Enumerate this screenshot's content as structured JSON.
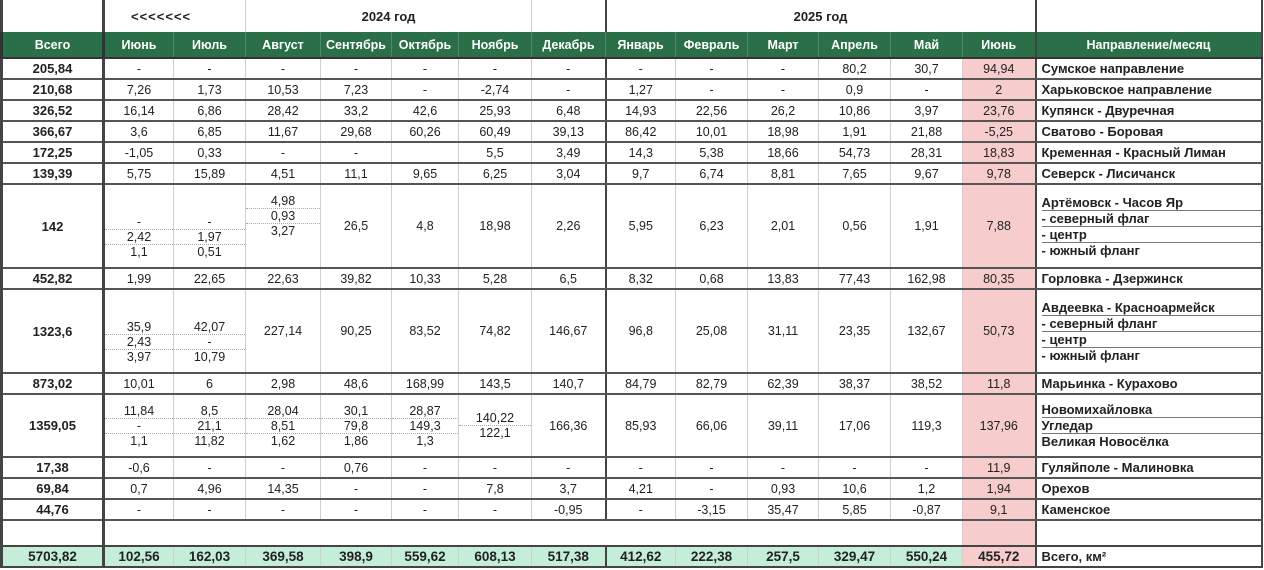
{
  "header": {
    "arrows": "<<<<<<<",
    "year_2024": "2024 год",
    "year_2025": "2025 год",
    "total_label": "Всего",
    "direction_label": "Направление/месяц",
    "months": [
      "Июнь",
      "Июль",
      "Август",
      "Сентябрь",
      "Октябрь",
      "Ноябрь",
      "Декабрь",
      "Январь",
      "Февраль",
      "Март",
      "Апрель",
      "Май",
      "Июнь"
    ]
  },
  "rows": [
    {
      "total": "205,84",
      "dir": "Сумское направление",
      "v": [
        "-",
        "-",
        "-",
        "-",
        "-",
        "-",
        "-",
        "-",
        "-",
        "-",
        "80,2",
        "30,7",
        "94,94"
      ]
    },
    {
      "total": "210,68",
      "dir": "Харьковское направление",
      "v": [
        "7,26",
        "1,73",
        "10,53",
        "7,23",
        "-",
        "-2,74",
        "-",
        "1,27",
        "-",
        "-",
        "0,9",
        "-",
        "2"
      ]
    },
    {
      "total": "326,52",
      "dir": "Купянск - Двуречная",
      "v": [
        "16,14",
        "6,86",
        "28,42",
        "33,2",
        "42,6",
        "25,93",
        "6,48",
        "14,93",
        "22,56",
        "26,2",
        "10,86",
        "3,97",
        "23,76"
      ]
    },
    {
      "total": "366,67",
      "dir": "Сватово - Боровая",
      "v": [
        "3,6",
        "6,85",
        "11,67",
        "29,68",
        "60,26",
        "60,49",
        "39,13",
        "86,42",
        "10,01",
        "18,98",
        "1,91",
        "21,88",
        "-5,25"
      ]
    },
    {
      "total": "172,25",
      "dir": "Кременная - Красный Лиман",
      "v": [
        "-1,05",
        "0,33",
        "-",
        "-",
        "",
        "5,5",
        "3,49",
        "14,3",
        "5,38",
        "18,66",
        "54,73",
        "28,31",
        "18,83"
      ]
    },
    {
      "total": "139,39",
      "dir": "Северск - Лисичанск",
      "v": [
        "5,75",
        "15,89",
        "4,51",
        "11,1",
        "9,65",
        "6,25",
        "3,04",
        "9,7",
        "6,74",
        "8,81",
        "7,65",
        "9,67",
        "9,78"
      ]
    }
  ],
  "artemovsk": {
    "total": "142",
    "dirs": [
      "Артёмовск - Часов Яр",
      "- северный флаг",
      "- центр",
      "- южный фланг"
    ],
    "june": [
      "-",
      "2,42",
      "1,1"
    ],
    "july": [
      "-",
      "1,97",
      "0,51"
    ],
    "aug": [
      "4,98",
      "0,93",
      "3,27"
    ],
    "v": [
      "26,5",
      "4,8",
      "18,98",
      "2,26",
      "5,95",
      "6,23",
      "2,01",
      "0,56",
      "1,91",
      "7,88"
    ]
  },
  "gorlovka": {
    "total": "452,82",
    "dir": "Горловка - Дзержинск",
    "v": [
      "1,99",
      "22,65",
      "22,63",
      "39,82",
      "10,33",
      "5,28",
      "6,5",
      "8,32",
      "0,68",
      "13,83",
      "77,43",
      "162,98",
      "80,35"
    ]
  },
  "avdeevka": {
    "total": "1323,6",
    "dirs": [
      "Авдеевка - Красноармейск",
      "- северный фланг",
      "- центр",
      "- южный фланг"
    ],
    "june": [
      "35,9",
      "2,43",
      "3,97"
    ],
    "july": [
      "42,07",
      "-",
      "10,79"
    ],
    "v": [
      "227,14",
      "90,25",
      "83,52",
      "74,82",
      "146,67",
      "96,8",
      "25,08",
      "31,11",
      "23,35",
      "132,67",
      "50,73"
    ]
  },
  "marinka": {
    "total": "873,02",
    "dir": "Марьинка - Курахово",
    "v": [
      "10,01",
      "6",
      "2,98",
      "48,6",
      "168,99",
      "143,5",
      "140,7",
      "84,79",
      "82,79",
      "62,39",
      "38,37",
      "38,52",
      "11,8"
    ]
  },
  "novomikh": {
    "total": "1359,05",
    "dirs": [
      "Новомихайловка",
      "Угледар",
      "Великая Новосёлка"
    ],
    "june": [
      "11,84",
      "-",
      "1,1"
    ],
    "july": [
      "8,5",
      "21,1",
      "11,82"
    ],
    "aug": [
      "28,04",
      "8,51",
      "1,62"
    ],
    "sep": [
      "30,1",
      "79,8",
      "1,86"
    ],
    "oct": [
      "28,87",
      "149,3",
      "1,3"
    ],
    "nov": [
      "140,22",
      "122,1"
    ],
    "v": [
      "166,36",
      "85,93",
      "66,06",
      "39,11",
      "17,06",
      "119,3",
      "137,96"
    ]
  },
  "rows2": [
    {
      "total": "17,38",
      "dir": "Гуляйполе - Малиновка",
      "v": [
        "-0,6",
        "-",
        "-",
        "0,76",
        "-",
        "-",
        "-",
        "-",
        "-",
        "-",
        "-",
        "-",
        "11,9"
      ]
    },
    {
      "total": "69,84",
      "dir": "Орехов",
      "v": [
        "0,7",
        "4,96",
        "14,35",
        "-",
        "-",
        "7,8",
        "3,7",
        "4,21",
        "-",
        "0,93",
        "10,6",
        "1,2",
        "1,94"
      ]
    },
    {
      "total": "44,76",
      "dir": "Каменское",
      "v": [
        "-",
        "-",
        "-",
        "-",
        "-",
        "-",
        "-0,95",
        "-",
        "-3,15",
        "35,47",
        "5,85",
        "-0,87",
        "9,1"
      ]
    }
  ],
  "footer": {
    "total": "5703,82",
    "dir": "Всего, км²",
    "v": [
      "102,56",
      "162,03",
      "369,58",
      "398,9",
      "559,62",
      "608,13",
      "517,38",
      "412,62",
      "222,38",
      "257,5",
      "329,47",
      "550,24",
      "455,72"
    ]
  },
  "colors": {
    "header_green": "#2b6f48",
    "footer_mint": "#c5eed9",
    "june_pink": "#f6cccc"
  }
}
